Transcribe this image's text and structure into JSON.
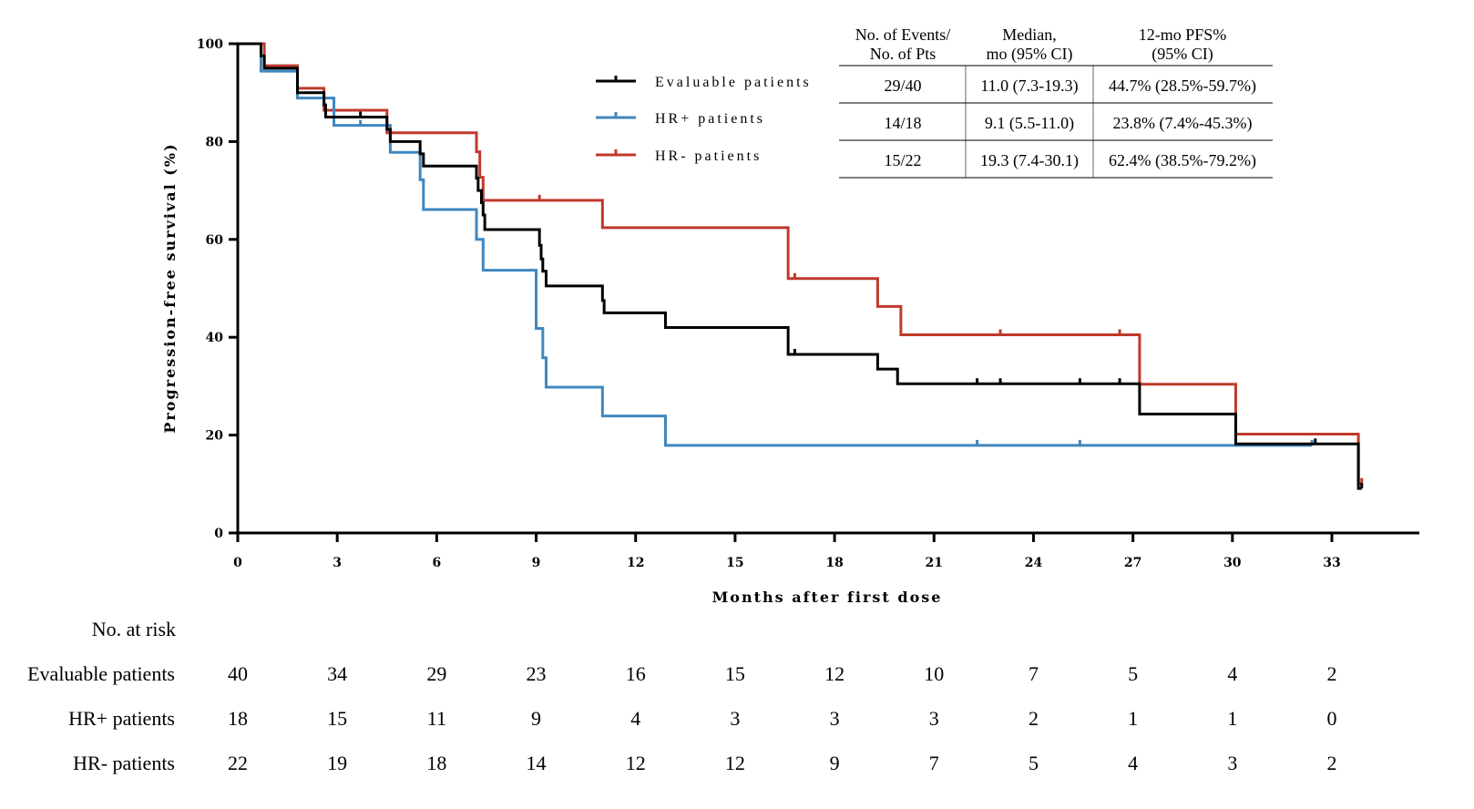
{
  "chart_data": {
    "type": "line",
    "subtype": "kaplan-meier step",
    "xlabel": "Months after first dose",
    "ylabel": "Progression-free survival (%)",
    "xlim": [
      0,
      34
    ],
    "ylim": [
      0,
      100
    ],
    "xticks": [
      0,
      3,
      6,
      9,
      12,
      15,
      18,
      21,
      24,
      27,
      30,
      33
    ],
    "yticks": [
      0,
      20,
      40,
      60,
      80,
      100
    ],
    "grid": false,
    "legend_placement": "top-center",
    "series": [
      {
        "name": "Evaluable patients",
        "color": "#000000",
        "steps": [
          [
            0,
            100
          ],
          [
            0.7,
            97.5
          ],
          [
            0.8,
            95
          ],
          [
            1.8,
            90
          ],
          [
            2.6,
            87.5
          ],
          [
            2.65,
            85
          ],
          [
            4.5,
            82.5
          ],
          [
            4.6,
            80
          ],
          [
            5.5,
            77.5
          ],
          [
            5.6,
            75
          ],
          [
            7.2,
            72.5
          ],
          [
            7.25,
            70
          ],
          [
            7.35,
            67.5
          ],
          [
            7.4,
            65
          ],
          [
            7.45,
            62
          ],
          [
            9.1,
            58.8
          ],
          [
            9.15,
            56
          ],
          [
            9.2,
            53.5
          ],
          [
            9.3,
            50.5
          ],
          [
            11.0,
            47.5
          ],
          [
            11.05,
            45
          ],
          [
            12.9,
            42
          ],
          [
            16.6,
            36.5
          ],
          [
            19.3,
            33.5
          ],
          [
            19.9,
            30.5
          ],
          [
            27.2,
            24.3
          ],
          [
            30.1,
            18.2
          ],
          [
            33.8,
            9.1
          ]
        ],
        "censored": [
          3.7,
          16.8,
          22.3,
          23.0,
          25.4,
          26.6,
          32.5,
          33.9
        ]
      },
      {
        "name": "HR+ patients",
        "color": "#3f87bf",
        "steps": [
          [
            0,
            100
          ],
          [
            0.7,
            94.4
          ],
          [
            1.8,
            88.9
          ],
          [
            2.9,
            83.3
          ],
          [
            4.6,
            77.8
          ],
          [
            5.5,
            72.2
          ],
          [
            5.6,
            66.1
          ],
          [
            7.2,
            60
          ],
          [
            7.4,
            53.7
          ],
          [
            9.0,
            41.8
          ],
          [
            9.2,
            35.8
          ],
          [
            9.3,
            29.8
          ],
          [
            11.0,
            23.9
          ],
          [
            12.9,
            17.9
          ]
        ],
        "end": 32.4,
        "censored": [
          3.7,
          22.3,
          25.4,
          32.4
        ]
      },
      {
        "name": "HR- patients",
        "color": "#c0392b",
        "steps": [
          [
            0,
            100
          ],
          [
            0.8,
            95.5
          ],
          [
            1.8,
            90.9
          ],
          [
            2.6,
            86.4
          ],
          [
            4.5,
            81.8
          ],
          [
            7.2,
            77.9
          ],
          [
            7.3,
            72.7
          ],
          [
            7.4,
            68
          ],
          [
            11.0,
            62.4
          ],
          [
            16.6,
            52
          ],
          [
            19.3,
            46.3
          ],
          [
            20.0,
            40.5
          ],
          [
            27.2,
            30.4
          ],
          [
            30.1,
            20.2
          ],
          [
            33.8,
            10.1
          ]
        ],
        "censored": [
          9.1,
          16.8,
          23.0,
          26.6,
          33.9
        ]
      }
    ],
    "summary_table": {
      "headers": [
        [
          "No. of Events/",
          "No. of Pts"
        ],
        [
          "Median,",
          "mo (95% CI)"
        ],
        [
          "12-mo PFS%",
          "(95% CI)"
        ]
      ],
      "rows": [
        [
          "29/40",
          "11.0 (7.3-19.3)",
          "44.7% (28.5%-59.7%)"
        ],
        [
          "14/18",
          "9.1 (5.5-11.0)",
          "23.8% (7.4%-45.3%)"
        ],
        [
          "15/22",
          "19.3 (7.4-30.1)",
          "62.4% (38.5%-79.2%)"
        ]
      ]
    },
    "risk_table": {
      "title": "No. at risk",
      "rows": [
        {
          "label": "Evaluable patients",
          "values": [
            40,
            34,
            29,
            23,
            16,
            15,
            12,
            10,
            7,
            5,
            4,
            2
          ]
        },
        {
          "label": "HR+ patients",
          "values": [
            18,
            15,
            11,
            9,
            4,
            3,
            3,
            3,
            2,
            1,
            1,
            0
          ]
        },
        {
          "label": "HR- patients",
          "values": [
            22,
            19,
            18,
            14,
            12,
            12,
            9,
            7,
            5,
            4,
            3,
            2
          ]
        }
      ]
    }
  }
}
